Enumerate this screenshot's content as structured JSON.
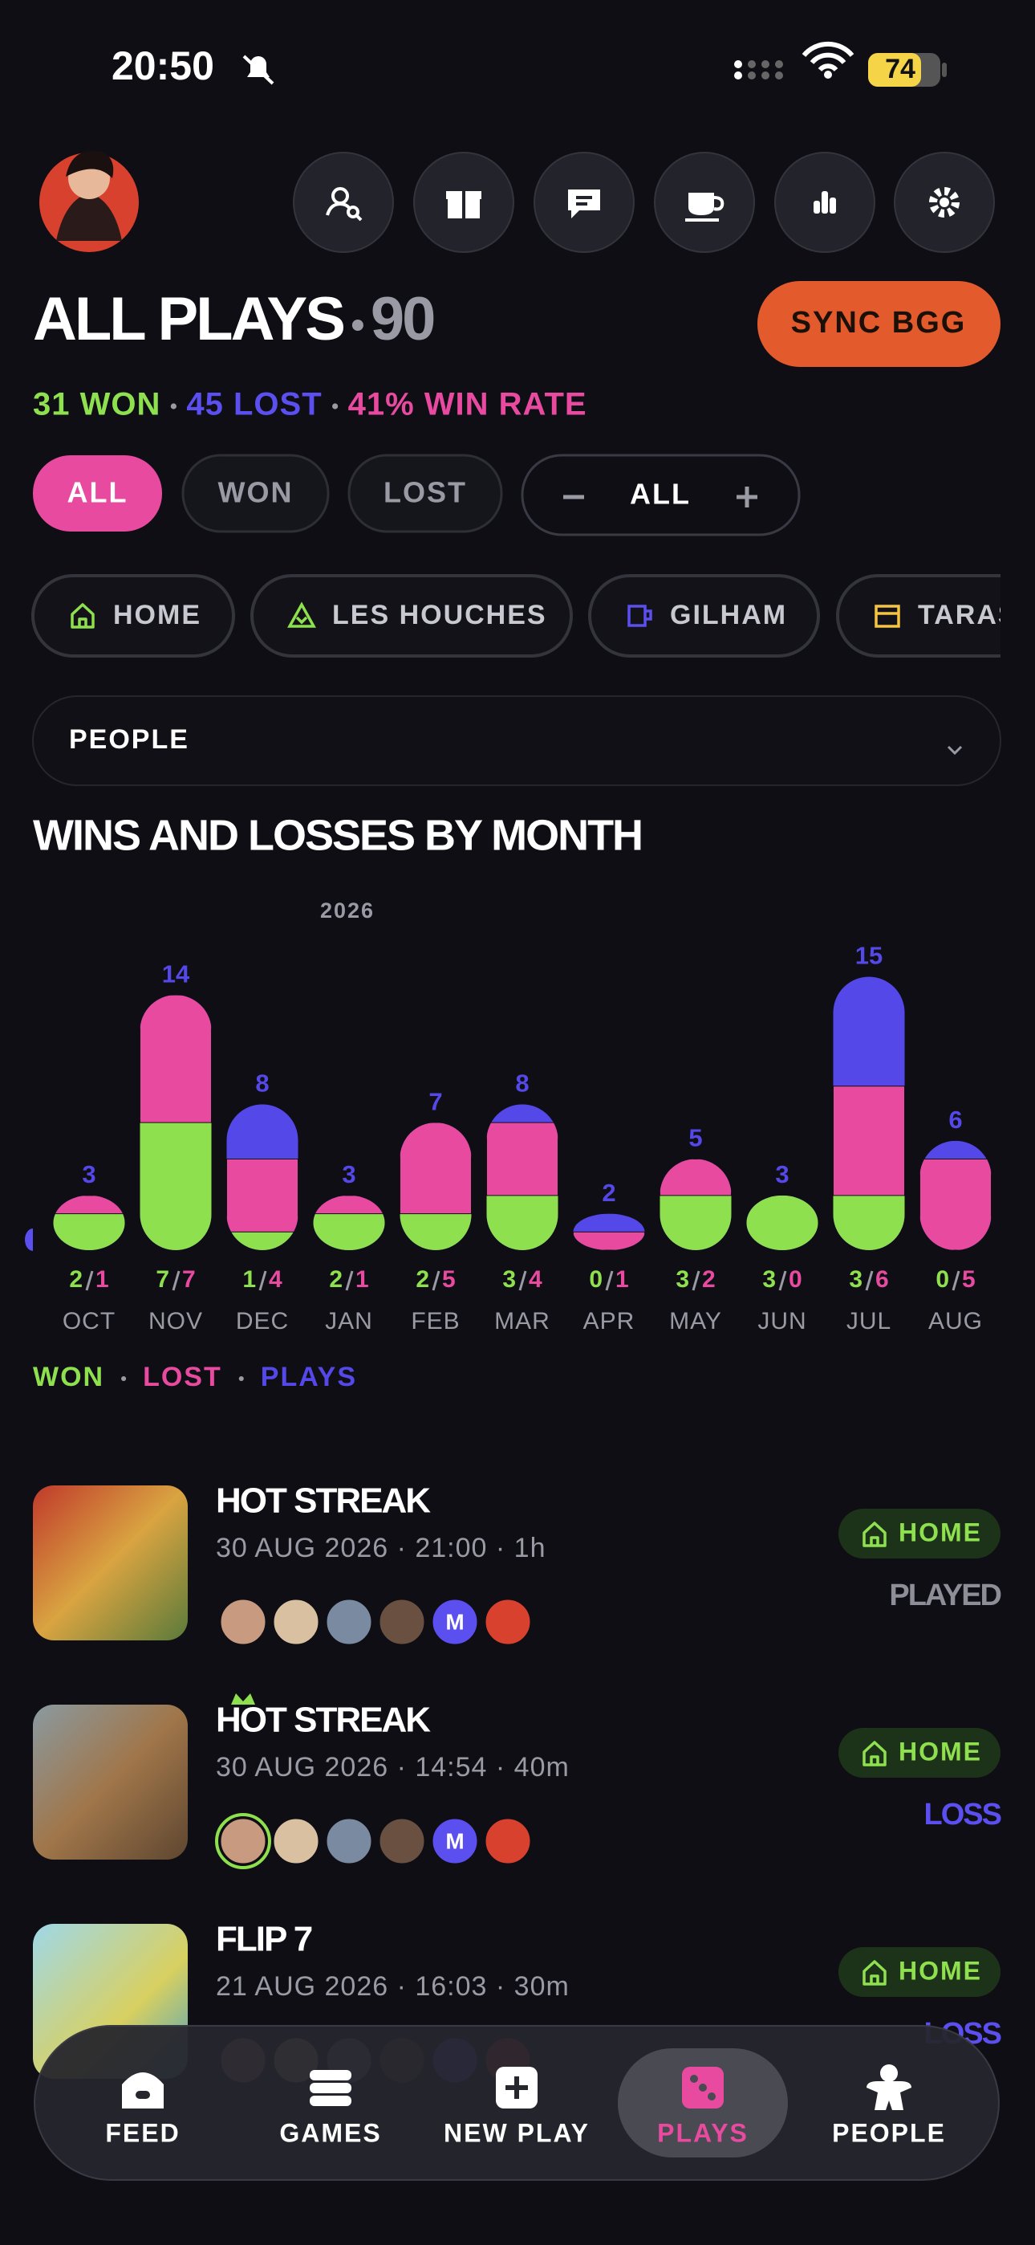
{
  "status": {
    "time": "20:50",
    "battery": "74"
  },
  "header": {
    "title": "ALL PLAYS",
    "count": "90",
    "sync": "SYNC BGG"
  },
  "stats": {
    "won": "31 WON",
    "lost": "45 LOST",
    "win_rate": "41% WIN RATE"
  },
  "filters": [
    "ALL",
    "WON",
    "LOST"
  ],
  "stepper": "ALL",
  "locations": [
    "HOME",
    "LES HOUCHES",
    "GILHAM",
    "TARAS"
  ],
  "people_filter": "PEOPLE",
  "chart_data": {
    "type": "bar",
    "stacked": true,
    "title": "WINS AND LOSSES BY MONTH",
    "year_label": "2026",
    "categories": [
      "OCT",
      "NOV",
      "DEC",
      "JAN",
      "FEB",
      "MAR",
      "APR",
      "MAY",
      "JUN",
      "JUL",
      "AUG"
    ],
    "series": [
      {
        "name": "WON",
        "color": "#8ee04f",
        "values": [
          2,
          7,
          1,
          2,
          2,
          3,
          0,
          3,
          3,
          3,
          0
        ]
      },
      {
        "name": "LOST",
        "color": "#e84aa0",
        "values": [
          1,
          7,
          4,
          1,
          5,
          4,
          1,
          2,
          0,
          6,
          5
        ]
      },
      {
        "name": "PLAYS",
        "color": "#5548e8",
        "values": [
          3,
          14,
          8,
          3,
          7,
          8,
          2,
          5,
          3,
          15,
          6
        ]
      }
    ]
  },
  "plays": [
    {
      "title": "HOT STREAK",
      "meta": "30 AUG 2026 · 21:00 · 1h",
      "avatar_initial": "M",
      "location": "HOME",
      "result": "PLAYED",
      "result_color": "#8e8e98"
    },
    {
      "title": "HOT STREAK",
      "meta": "30 AUG 2026 · 14:54 · 40m",
      "avatar_initial": "M",
      "location": "HOME",
      "result": "LOSS",
      "result_color": "#5b4ff0"
    },
    {
      "title": "FLIP 7",
      "meta": "21 AUG 2026 · 16:03 · 30m",
      "location": "HOME",
      "result": "LOSS",
      "result_color": "#5b4ff0"
    }
  ],
  "nav": [
    {
      "label": "FEED",
      "active": false
    },
    {
      "label": "GAMES",
      "active": false
    },
    {
      "label": "NEW PLAY",
      "active": false
    },
    {
      "label": "PLAYS",
      "active": true
    },
    {
      "label": "PEOPLE",
      "active": false
    }
  ]
}
